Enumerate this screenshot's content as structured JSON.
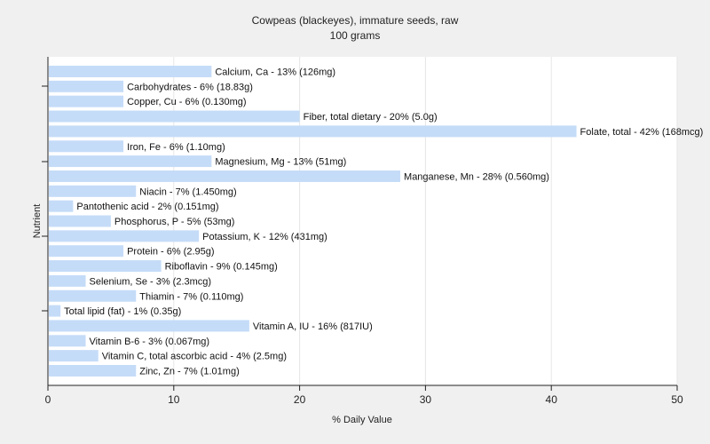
{
  "chart_data": {
    "type": "bar",
    "orientation": "horizontal",
    "title": "Cowpeas (blackeyes), immature seeds, raw",
    "subtitle": "100 grams",
    "xlabel": "% Daily Value",
    "ylabel": "Nutrient",
    "xlim": [
      0,
      50
    ],
    "xticks": [
      0,
      10,
      20,
      30,
      40,
      50
    ],
    "grid": true,
    "bar_color": "#c5dcf8",
    "categories": [
      "Calcium, Ca",
      "Carbohydrates",
      "Copper, Cu",
      "Fiber, total dietary",
      "Folate, total",
      "Iron, Fe",
      "Magnesium, Mg",
      "Manganese, Mn",
      "Niacin",
      "Pantothenic acid",
      "Phosphorus, P",
      "Potassium, K",
      "Protein",
      "Riboflavin",
      "Selenium, Se",
      "Thiamin",
      "Total lipid (fat)",
      "Vitamin A, IU",
      "Vitamin B-6",
      "Vitamin C, total ascorbic acid",
      "Zinc, Zn"
    ],
    "values": [
      13,
      6,
      6,
      20,
      42,
      6,
      13,
      28,
      7,
      2,
      5,
      12,
      6,
      9,
      3,
      7,
      1,
      16,
      3,
      4,
      7
    ],
    "labels": [
      "Calcium, Ca - 13% (126mg)",
      "Carbohydrates - 6% (18.83g)",
      "Copper, Cu - 6% (0.130mg)",
      "Fiber, total dietary - 20% (5.0g)",
      "Folate, total - 42% (168mcg)",
      "Iron, Fe - 6% (1.10mg)",
      "Magnesium, Mg - 13% (51mg)",
      "Manganese, Mn - 28% (0.560mg)",
      "Niacin - 7% (1.450mg)",
      "Pantothenic acid - 2% (0.151mg)",
      "Phosphorus, P - 5% (53mg)",
      "Potassium, K - 12% (431mg)",
      "Protein - 6% (2.95g)",
      "Riboflavin - 9% (0.145mg)",
      "Selenium, Se - 3% (2.3mcg)",
      "Thiamin - 7% (0.110mg)",
      "Total lipid (fat) - 1% (0.35g)",
      "Vitamin A, IU - 16% (817IU)",
      "Vitamin B-6 - 3% (0.067mg)",
      "Vitamin C, total ascorbic acid - 4% (2.5mg)",
      "Zinc, Zn - 7% (1.01mg)"
    ]
  }
}
